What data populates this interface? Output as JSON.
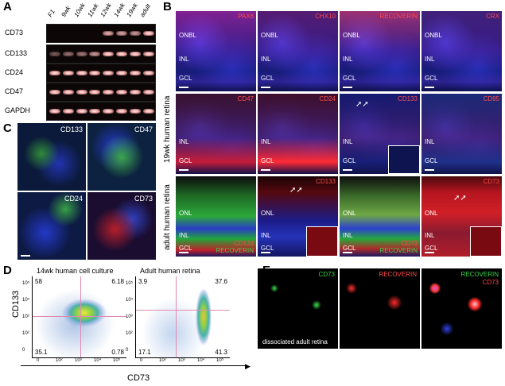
{
  "panel_labels": {
    "a": "A",
    "b": "B",
    "c": "C",
    "d": "D",
    "e": "E"
  },
  "gel": {
    "lanes": [
      "F1",
      "9wk",
      "10wk",
      "11wk",
      "12wk",
      "14wk",
      "19wk",
      "adult"
    ],
    "rows": [
      {
        "name": "CD73",
        "intensity": [
          0,
          0,
          0,
          0,
          0.8,
          0.75,
          0.7,
          1
        ]
      },
      {
        "name": "CD133",
        "intensity": [
          0.4,
          0.5,
          0.55,
          0.7,
          1,
          1,
          1,
          1
        ]
      },
      {
        "name": "CD24",
        "intensity": [
          1,
          1,
          1,
          1,
          1,
          1,
          1,
          1
        ]
      },
      {
        "name": "CD47",
        "intensity": [
          1,
          1,
          1,
          1,
          1,
          1,
          1,
          1
        ]
      },
      {
        "name": "GAPDH",
        "intensity": [
          1,
          1,
          1,
          1,
          1,
          1,
          1,
          1
        ]
      }
    ]
  },
  "retina19": {
    "side_label": "19wk human retina",
    "row1": [
      {
        "marker": "PAX6",
        "layers": [
          "ONBL",
          "INL",
          "GCL"
        ]
      },
      {
        "marker": "CHX10",
        "layers": [
          "ONBL",
          "INL",
          "GCL"
        ]
      },
      {
        "marker": "RECOVERIN",
        "layers": [
          "ONBL",
          "INL",
          "GCL"
        ]
      },
      {
        "marker": "CRX",
        "layers": [
          "ONBL",
          "INL",
          "GCL"
        ]
      }
    ],
    "row2": [
      {
        "marker": "CD47",
        "layers": [
          "INL",
          "GCL"
        ]
      },
      {
        "marker": "CD24",
        "layers": [
          "INL",
          "GCL"
        ]
      },
      {
        "marker": "CD133",
        "layers": [
          "INL",
          "GCL"
        ]
      },
      {
        "marker": "CD95",
        "layers": [
          "INL",
          "GCL"
        ]
      }
    ]
  },
  "adult_retina": {
    "side_label": "adult human retina",
    "tiles": [
      {
        "marker_top": "",
        "layers": [
          "ONL",
          "INL",
          "GCL"
        ],
        "bottom_red": "CD133",
        "bottom_green": "RECOVERIN"
      },
      {
        "marker_top": "CD133",
        "layers": [
          "ONL",
          "INL",
          "GCL"
        ],
        "bottom_red": "",
        "bottom_green": ""
      },
      {
        "marker_top": "",
        "layers": [
          "ONL",
          "INL",
          "GCL"
        ],
        "bottom_red": "CD73",
        "bottom_green": "RECOVERIN"
      },
      {
        "marker_top": "CD73",
        "layers": [
          "ONL",
          "INL",
          "GCL"
        ],
        "bottom_red": "",
        "bottom_green": ""
      }
    ]
  },
  "culture_c": [
    {
      "marker": "CD133",
      "color": "#ffffff"
    },
    {
      "marker": "CD47",
      "color": "#ffffff"
    },
    {
      "marker": "CD24",
      "color": "#ffffff"
    },
    {
      "marker": "CD73",
      "color": "#ffffff"
    }
  ],
  "flow": {
    "ylabel": "CD133",
    "xlabel": "CD73",
    "plots": [
      {
        "title": "14wk human cell culture",
        "q_ul": "58",
        "q_ur": "6.18",
        "q_ll": "35.1",
        "q_lr": "0.78"
      },
      {
        "title": "Adult human retina",
        "q_ul": "3.9",
        "q_ur": "37.6",
        "q_ll": "17.1",
        "q_lr": "41.3"
      }
    ],
    "xticks": [
      "0",
      "10²",
      "10³",
      "10⁴",
      "10⁵"
    ],
    "yticks": [
      "10⁵",
      "10⁴",
      "10³",
      "10²",
      "0"
    ]
  },
  "panel_e": {
    "green": "CD73",
    "red": "RECOVERIN",
    "merge_green": "RECOVERIN",
    "merge_red": "CD73",
    "caption": "dissociated adult retina"
  },
  "colors": {
    "red": "#ff4a4a",
    "green": "#39d24a",
    "blue": "#2c3ad6"
  }
}
